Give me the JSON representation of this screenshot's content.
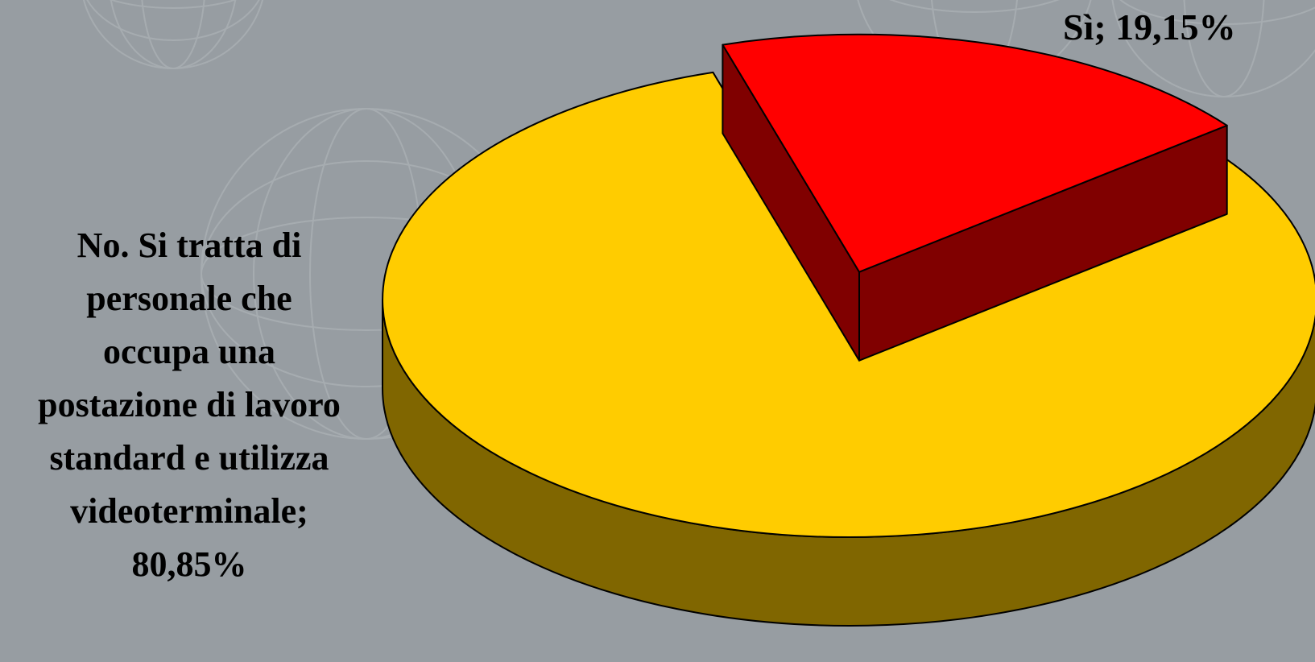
{
  "slide": {
    "background_color": "#979da2"
  },
  "chart_data": {
    "type": "pie",
    "style": "3d-exploded",
    "slices": [
      {
        "label": "Sì; 19,15%",
        "value": 19.15,
        "color": "#ff0000",
        "side_color": "#800000",
        "exploded": true
      },
      {
        "label": "No. Si tratta di\npersonale che\noccupa una\npostazione di lavoro\nstandard e utilizza\nvideoterminale;\n80,85%",
        "value": 80.85,
        "color": "#ffcc00",
        "side_color": "#806600",
        "exploded": false
      }
    ]
  }
}
